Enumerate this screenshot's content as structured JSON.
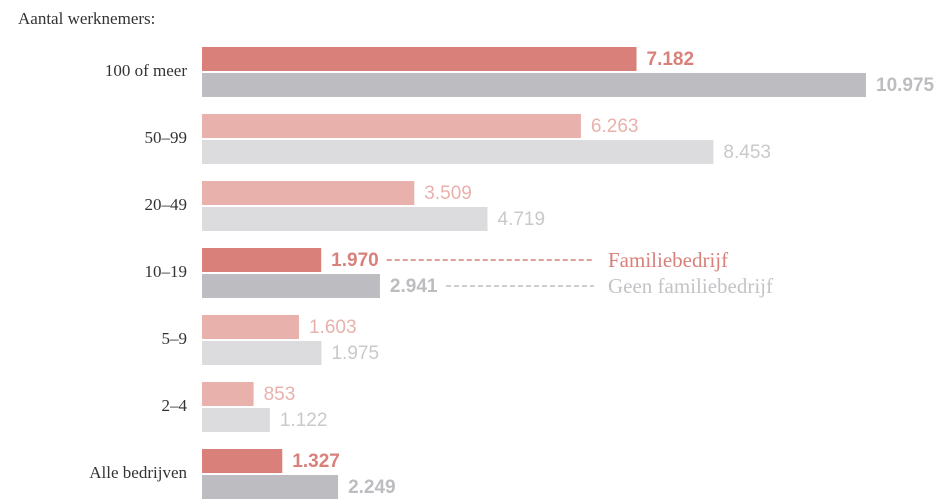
{
  "chart_data": {
    "type": "bar",
    "orientation": "horizontal",
    "title": "Aantal werknemers:",
    "categories": [
      "100 of meer",
      "50–99",
      "20–49",
      "10–19",
      "5–9",
      "2–4",
      "Alle bedrijven"
    ],
    "highlight": [
      true,
      false,
      false,
      true,
      false,
      false,
      true
    ],
    "legend_row": 3,
    "series": [
      {
        "name": "Familiebedrijf",
        "color": "#d9807b",
        "muted_color": "#e9b1ab",
        "label_color": "#d9807b",
        "muted_label_color": "#e9b1ab",
        "values": [
          7182,
          6263,
          3509,
          1970,
          1603,
          853,
          1327
        ],
        "value_labels": [
          "7.182",
          "6.263",
          "3.509",
          "1.970",
          "1.603",
          "853",
          "1.327"
        ]
      },
      {
        "name": "Geen familiebedrijf",
        "color": "#bdbdc1",
        "muted_color": "#dcdcde",
        "label_color": "#bdbdc1",
        "muted_label_color": "#c9c9cc",
        "values": [
          10975,
          8453,
          4719,
          2941,
          1975,
          1122,
          2249
        ],
        "value_labels": [
          "10.975",
          "8.453",
          "4.719",
          "2.941",
          "1.975",
          "1.122",
          "2.249"
        ]
      }
    ]
  }
}
